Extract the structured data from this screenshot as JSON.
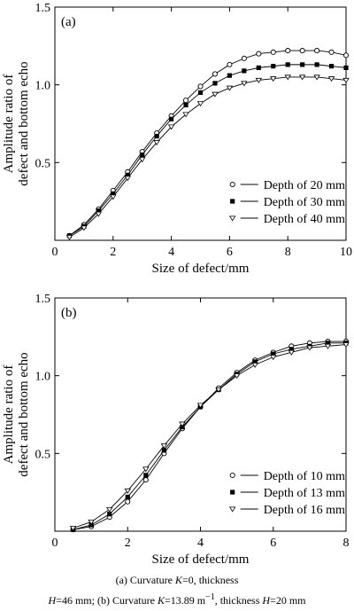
{
  "chart_data": [
    {
      "type": "scatter",
      "panel_label": "(a)",
      "xlabel": "Size of defect/mm",
      "ylabel_lines": [
        "Amplitude ratio of",
        "defect and bottom echo"
      ],
      "xlim": [
        0,
        10
      ],
      "ylim": [
        0,
        1.5
      ],
      "xticks": [
        {
          "v": 0,
          "label": "0"
        },
        {
          "v": 2,
          "label": "2"
        },
        {
          "v": 4,
          "label": "4"
        },
        {
          "v": 6,
          "label": "6"
        },
        {
          "v": 8,
          "label": "8"
        },
        {
          "v": 10,
          "label": "10"
        }
      ],
      "yticks": [
        {
          "v": 0.5,
          "label": "0.5"
        },
        {
          "v": 1.0,
          "label": "1.0"
        },
        {
          "v": 1.5,
          "label": "1.5"
        }
      ],
      "legend_position": "bottom-right",
      "series": [
        {
          "name": "Depth of 20 mm",
          "marker": "circle-open",
          "x": [
            0.5,
            1,
            1.5,
            2,
            2.5,
            3,
            3.5,
            4,
            4.5,
            5,
            5.5,
            6,
            6.5,
            7,
            7.5,
            8,
            8.5,
            9,
            9.5,
            10
          ],
          "y": [
            0.03,
            0.1,
            0.2,
            0.32,
            0.44,
            0.57,
            0.69,
            0.8,
            0.9,
            0.99,
            1.07,
            1.13,
            1.17,
            1.2,
            1.21,
            1.22,
            1.22,
            1.22,
            1.21,
            1.19
          ]
        },
        {
          "name": "Depth of 30 mm",
          "marker": "square-filled",
          "x": [
            0.5,
            1,
            1.5,
            2,
            2.5,
            3,
            3.5,
            4,
            4.5,
            5,
            5.5,
            6,
            6.5,
            7,
            7.5,
            8,
            8.5,
            9,
            9.5,
            10
          ],
          "y": [
            0.03,
            0.09,
            0.19,
            0.3,
            0.42,
            0.55,
            0.67,
            0.78,
            0.87,
            0.95,
            1.01,
            1.06,
            1.09,
            1.11,
            1.12,
            1.13,
            1.13,
            1.13,
            1.12,
            1.11
          ]
        },
        {
          "name": "Depth of 40 mm",
          "marker": "triangle-down-open",
          "x": [
            0.5,
            1,
            1.5,
            2,
            2.5,
            3,
            3.5,
            4,
            4.5,
            5,
            5.5,
            6,
            6.5,
            7,
            7.5,
            8,
            8.5,
            9,
            9.5,
            10
          ],
          "y": [
            0.02,
            0.08,
            0.17,
            0.28,
            0.4,
            0.52,
            0.63,
            0.73,
            0.81,
            0.88,
            0.94,
            0.98,
            1.01,
            1.03,
            1.04,
            1.05,
            1.05,
            1.05,
            1.04,
            1.03
          ]
        }
      ]
    },
    {
      "type": "scatter",
      "panel_label": "(b)",
      "xlabel": "Size of defect/mm",
      "ylabel_lines": [
        "Amplitude ratio of",
        "defect and bottom echo"
      ],
      "xlim": [
        0,
        8
      ],
      "ylim": [
        0,
        1.5
      ],
      "xticks": [
        {
          "v": 0,
          "label": "0"
        },
        {
          "v": 2,
          "label": "2"
        },
        {
          "v": 4,
          "label": "4"
        },
        {
          "v": 6,
          "label": "6"
        },
        {
          "v": 8,
          "label": "8"
        }
      ],
      "yticks": [
        {
          "v": 0.5,
          "label": "0.5"
        },
        {
          "v": 1.0,
          "label": "1.0"
        },
        {
          "v": 1.5,
          "label": "1.5"
        }
      ],
      "legend_position": "bottom-right",
      "series": [
        {
          "name": "Depth of 10 mm",
          "marker": "circle-open",
          "x": [
            0.5,
            1,
            1.5,
            2,
            2.5,
            3,
            3.5,
            4,
            4.5,
            5,
            5.5,
            6,
            6.5,
            7,
            7.5,
            8
          ],
          "y": [
            0.01,
            0.03,
            0.09,
            0.19,
            0.33,
            0.5,
            0.66,
            0.8,
            0.92,
            1.02,
            1.1,
            1.15,
            1.19,
            1.21,
            1.22,
            1.22
          ]
        },
        {
          "name": "Depth of 13 mm",
          "marker": "square-filled",
          "x": [
            0.5,
            1,
            1.5,
            2,
            2.5,
            3,
            3.5,
            4,
            4.5,
            5,
            5.5,
            6,
            6.5,
            7,
            7.5,
            8
          ],
          "y": [
            0.01,
            0.04,
            0.11,
            0.22,
            0.36,
            0.52,
            0.67,
            0.8,
            0.91,
            1.01,
            1.09,
            1.14,
            1.17,
            1.19,
            1.21,
            1.21
          ]
        },
        {
          "name": "Depth of 16 mm",
          "marker": "triangle-down-open",
          "x": [
            0.5,
            1,
            1.5,
            2,
            2.5,
            3,
            3.5,
            4,
            4.5,
            5,
            5.5,
            6,
            6.5,
            7,
            7.5,
            8
          ],
          "y": [
            0.02,
            0.06,
            0.14,
            0.26,
            0.4,
            0.55,
            0.69,
            0.81,
            0.91,
            1.0,
            1.07,
            1.12,
            1.15,
            1.18,
            1.19,
            1.2
          ]
        }
      ]
    }
  ],
  "caption": {
    "line1_prefix": "(a) Curvature ",
    "line1_var": "K",
    "line1_suffix": "=0, thickness",
    "line2_var1": "H",
    "line2_mid": "=46 mm; (b) Curvature ",
    "line2_var2": "K",
    "line2_val": "=13.89 m",
    "line2_sup": "−1",
    "line2_mid2": ", thickness ",
    "line2_var3": "H",
    "line2_end": "=20 mm"
  }
}
